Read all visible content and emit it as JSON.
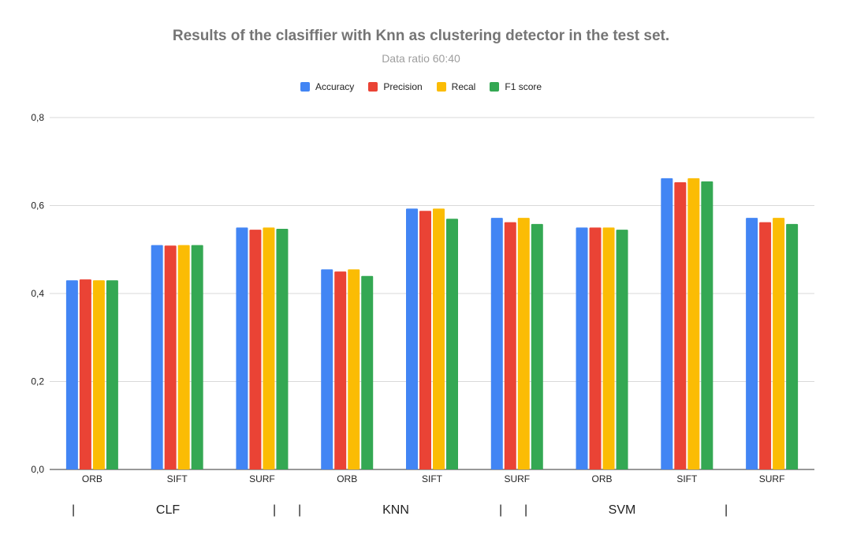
{
  "chart_data": {
    "type": "bar",
    "title": "Results of the clasiffier with Knn as clustering detector in the test set.",
    "subtitle": "Data ratio 60:40",
    "categories": [
      "ORB",
      "SIFT",
      "SURF",
      "ORB",
      "SIFT",
      "SURF",
      "ORB",
      "SIFT",
      "SURF"
    ],
    "groups": [
      {
        "label": "CLF"
      },
      {
        "label": "KNN"
      },
      {
        "label": "SVM"
      }
    ],
    "group_separator": "|",
    "series": [
      {
        "name": "Accuracy",
        "color": "#4285f4",
        "values": [
          0.43,
          0.51,
          0.55,
          0.455,
          0.593,
          0.572,
          0.55,
          0.662,
          0.572
        ]
      },
      {
        "name": "Precision",
        "color": "#ea4335",
        "values": [
          0.432,
          0.509,
          0.545,
          0.45,
          0.588,
          0.562,
          0.55,
          0.653,
          0.562
        ]
      },
      {
        "name": "Recal",
        "color": "#fbbc04",
        "values": [
          0.43,
          0.51,
          0.55,
          0.455,
          0.593,
          0.572,
          0.55,
          0.662,
          0.572
        ]
      },
      {
        "name": "F1 score",
        "color": "#34a853",
        "values": [
          0.43,
          0.51,
          0.547,
          0.44,
          0.57,
          0.558,
          0.545,
          0.655,
          0.558
        ]
      }
    ],
    "ylim": [
      0,
      0.8
    ],
    "yticks": [
      "0,0",
      "0,2",
      "0,4",
      "0,6",
      "0,8"
    ],
    "ytick_values": [
      0,
      0.2,
      0.4,
      0.6,
      0.8
    ],
    "grid": true,
    "legend_position": "top"
  }
}
